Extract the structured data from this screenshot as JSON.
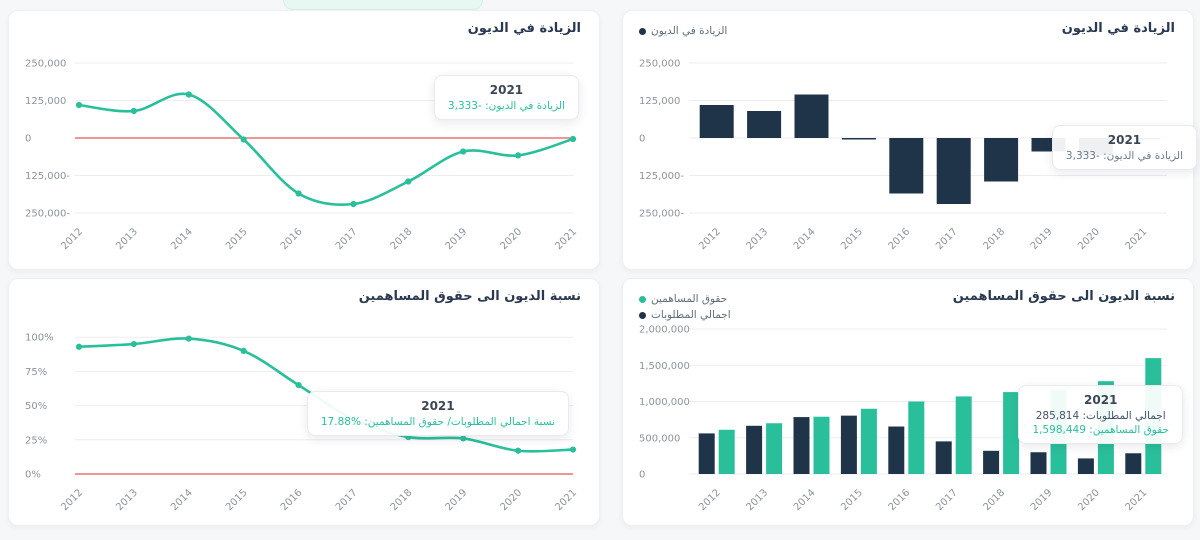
{
  "theme": {
    "teal": "#2abf9b",
    "navy": "#203449",
    "zero_line_red": "#e05c56",
    "grid": "#ededf0",
    "axis_label": "#8d949e"
  },
  "chart_data": [
    {
      "id": "debt-increase-line",
      "type": "line",
      "title": "الزيادة في الديون",
      "categories": [
        "2012",
        "2013",
        "2014",
        "2015",
        "2016",
        "2017",
        "2018",
        "2019",
        "2020",
        "2021"
      ],
      "series": [
        {
          "name": "الزيادة في الديون",
          "color": "#2abf9b",
          "values": [
            110000,
            90000,
            145000,
            -5000,
            -185000,
            -220000,
            -145000,
            -45000,
            -58000,
            -3333
          ]
        }
      ],
      "ylim": [
        -250000,
        250000
      ],
      "yticks": [
        {
          "v": 250000,
          "label": "250,000"
        },
        {
          "v": 125000,
          "label": "125,000"
        },
        {
          "v": 0,
          "label": "0",
          "red": true
        },
        {
          "v": -125000,
          "label": "125,000-"
        },
        {
          "v": -250000,
          "label": "250,000-"
        }
      ],
      "grid": true,
      "tooltip": {
        "title": "2021",
        "rows": [
          {
            "text": "الزيادة في الديون: -3,333",
            "color": "#2abf9b"
          }
        ]
      }
    },
    {
      "id": "debt-increase-bars",
      "type": "bar",
      "title": "الزيادة في الديون",
      "categories": [
        "2012",
        "2013",
        "2014",
        "2015",
        "2016",
        "2017",
        "2018",
        "2019",
        "2020",
        "2021"
      ],
      "series": [
        {
          "name": "الزيادة في الديون",
          "color": "#203449",
          "values": [
            110000,
            90000,
            145000,
            -5000,
            -185000,
            -220000,
            -145000,
            -45000,
            -58000,
            -3333
          ]
        }
      ],
      "ylim": [
        -250000,
        250000
      ],
      "yticks": [
        {
          "v": 250000,
          "label": "250,000"
        },
        {
          "v": 125000,
          "label": "125,000"
        },
        {
          "v": 0,
          "label": "0"
        },
        {
          "v": -125000,
          "label": "125,000-"
        },
        {
          "v": -250000,
          "label": "250,000-"
        }
      ],
      "grid": true,
      "legend": [
        {
          "label": "الزيادة في الديون",
          "color": "#203449"
        }
      ],
      "tooltip": {
        "title": "2021",
        "rows": [
          {
            "text": "الزيادة في الديون: -3,333",
            "color": "#6b7a88"
          }
        ]
      }
    },
    {
      "id": "debt-to-equity-line",
      "type": "line",
      "title": "نسبة الديون الى حقوق المساهمين",
      "categories": [
        "2012",
        "2013",
        "2014",
        "2015",
        "2016",
        "2017",
        "2018",
        "2019",
        "2020",
        "2021"
      ],
      "series": [
        {
          "name": "نسبة اجمالي المطلوبات/ حقوق المساهمين",
          "color": "#2abf9b",
          "values": [
            93,
            95,
            99,
            90,
            65,
            40,
            27,
            26,
            17,
            17.88
          ]
        }
      ],
      "ylim": [
        0,
        106
      ],
      "yticks": [
        {
          "v": 100,
          "label": "100%"
        },
        {
          "v": 75,
          "label": "75%"
        },
        {
          "v": 50,
          "label": "50%"
        },
        {
          "v": 25,
          "label": "25%"
        },
        {
          "v": 0,
          "label": "0%",
          "red": true
        }
      ],
      "grid": true,
      "tooltip": {
        "title": "2021",
        "rows": [
          {
            "text": "نسبة اجمالي المطلوبات/ حقوق المساهمين: %17.88",
            "color": "#2abf9b"
          }
        ]
      }
    },
    {
      "id": "debt-to-equity-bars",
      "type": "bar",
      "title": "نسبة الديون الى حقوق المساهمين",
      "categories": [
        "2012",
        "2013",
        "2014",
        "2015",
        "2016",
        "2017",
        "2018",
        "2019",
        "2020",
        "2021"
      ],
      "series": [
        {
          "name": "اجمالي المطلوبات",
          "color": "#203449",
          "values": [
            560000,
            665000,
            785000,
            805000,
            655000,
            450000,
            320000,
            300000,
            215000,
            285814
          ]
        },
        {
          "name": "حقوق المساهمين",
          "color": "#2abf9b",
          "values": [
            610000,
            700000,
            790000,
            900000,
            1000000,
            1070000,
            1130000,
            1160000,
            1280000,
            1598449
          ]
        }
      ],
      "ylim": [
        0,
        2000000
      ],
      "yticks": [
        {
          "v": 2000000,
          "label": "2,000,000"
        },
        {
          "v": 1500000,
          "label": "1,500,000"
        },
        {
          "v": 1000000,
          "label": "1,000,000"
        },
        {
          "v": 500000,
          "label": "500,000"
        },
        {
          "v": 0,
          "label": "0"
        }
      ],
      "grid": true,
      "legend": [
        {
          "label": "حقوق المساهمين",
          "color": "#2abf9b"
        },
        {
          "label": "اجمالي المطلوبات",
          "color": "#203449"
        }
      ],
      "tooltip": {
        "title": "2021",
        "rows": [
          {
            "text": "اجمالي المطلوبات: 285,814",
            "color": "#44546a"
          },
          {
            "text": "حقوق المساهمين: 1,598,449",
            "color": "#2abf9b"
          }
        ]
      }
    }
  ]
}
